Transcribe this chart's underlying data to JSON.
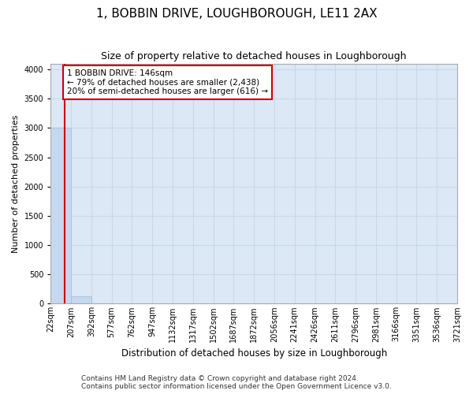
{
  "title": "1, BOBBIN DRIVE, LOUGHBOROUGH, LE11 2AX",
  "subtitle": "Size of property relative to detached houses in Loughborough",
  "xlabel": "Distribution of detached houses by size in Loughborough",
  "ylabel": "Number of detached properties",
  "footnote1": "Contains HM Land Registry data © Crown copyright and database right 2024.",
  "footnote2": "Contains public sector information licensed under the Open Government Licence v3.0.",
  "bin_labels": [
    "22sqm",
    "207sqm",
    "392sqm",
    "577sqm",
    "762sqm",
    "947sqm",
    "1132sqm",
    "1317sqm",
    "1502sqm",
    "1687sqm",
    "1872sqm",
    "2056sqm",
    "2241sqm",
    "2426sqm",
    "2611sqm",
    "2796sqm",
    "2981sqm",
    "3166sqm",
    "3351sqm",
    "3536sqm",
    "3721sqm"
  ],
  "bar_values": [
    3000,
    130,
    5,
    2,
    1,
    1,
    1,
    0,
    0,
    0,
    0,
    0,
    0,
    0,
    0,
    0,
    0,
    0,
    0,
    0
  ],
  "bar_color": "#c5d8f0",
  "bar_edge_color": "#a0bcd8",
  "ylim": [
    0,
    4100
  ],
  "yticks": [
    0,
    500,
    1000,
    1500,
    2000,
    2500,
    3000,
    3500,
    4000
  ],
  "property_size": 146,
  "property_label": "1 BOBBIN DRIVE: 146sqm",
  "annotation_line1": "← 79% of detached houses are smaller (2,438)",
  "annotation_line2": "20% of semi-detached houses are larger (616) →",
  "annotation_box_color": "#ffffff",
  "annotation_box_edge": "#cc0000",
  "red_line_color": "#cc0000",
  "title_fontsize": 11,
  "subtitle_fontsize": 9,
  "annotation_fontsize": 7.5,
  "tick_fontsize": 7,
  "ylabel_fontsize": 8,
  "xlabel_fontsize": 8.5,
  "grid_color": "#c8d8e8",
  "background_color": "#dce8f5"
}
